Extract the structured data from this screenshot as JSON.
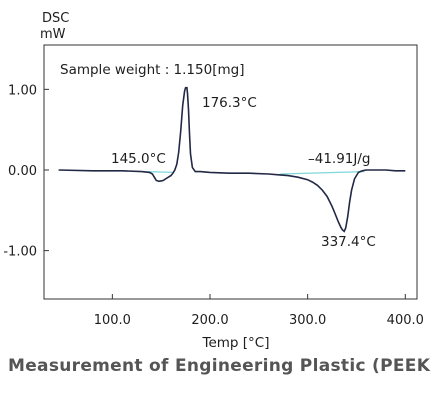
{
  "chart_data": {
    "type": "line",
    "ylabel_top": "DSC",
    "ylabel_unit": "mW",
    "xlabel": "Temp [°C]",
    "xlim": [
      30,
      412
    ],
    "ylim": [
      -1.6,
      1.55
    ],
    "xticks": [
      100,
      200,
      300,
      400
    ],
    "xtick_labels": [
      "100.0",
      "200.0",
      "300.0",
      "400.0"
    ],
    "yticks": [
      1,
      0,
      -1
    ],
    "ytick_labels": [
      "1.00",
      "0.00",
      "-1.00"
    ],
    "grid": false,
    "series": [
      {
        "x": [
          45,
          80,
          110,
          130,
          138,
          141,
          143,
          145,
          148,
          152,
          156,
          160,
          162,
          164,
          166,
          168,
          170,
          172,
          174,
          175,
          176.3,
          177,
          178,
          179,
          180,
          182,
          185,
          190,
          200,
          220,
          240,
          260,
          270,
          280,
          290,
          300,
          305,
          310,
          315,
          320,
          325,
          328,
          331,
          334,
          335.5,
          337.4,
          339,
          341,
          343,
          345,
          348,
          352,
          356,
          360,
          370,
          380,
          390,
          400
        ],
        "y": [
          0.0,
          -0.01,
          -0.01,
          -0.02,
          -0.03,
          -0.05,
          -0.09,
          -0.13,
          -0.14,
          -0.13,
          -0.1,
          -0.07,
          -0.04,
          0.0,
          0.07,
          0.22,
          0.48,
          0.8,
          0.98,
          1.02,
          1.02,
          0.95,
          0.75,
          0.45,
          0.2,
          0.03,
          -0.02,
          -0.02,
          -0.03,
          -0.04,
          -0.04,
          -0.05,
          -0.06,
          -0.07,
          -0.09,
          -0.12,
          -0.15,
          -0.19,
          -0.25,
          -0.33,
          -0.45,
          -0.54,
          -0.63,
          -0.71,
          -0.74,
          -0.76,
          -0.72,
          -0.58,
          -0.4,
          -0.25,
          -0.11,
          -0.03,
          -0.01,
          0.0,
          0.0,
          0.0,
          -0.01,
          -0.01
        ]
      }
    ],
    "baseline1": {
      "x": [
        136,
        162
      ],
      "y": [
        -0.02,
        -0.03
      ]
    },
    "baseline2": {
      "x": [
        272,
        358
      ],
      "y": [
        -0.05,
        -0.02
      ]
    },
    "annotations": {
      "sample_weight": "Sample weight : 1.150[mg]",
      "peak1": "176.3°C",
      "onset1": "145.0°C",
      "enthalpy": "–41.91J/g",
      "peak2": "337.4°C"
    },
    "colors": {
      "curve": "#232845",
      "baseline": "#7fd6dc",
      "frame": "#333333"
    }
  },
  "caption": "Measurement of Engineering Plastic (PEEK"
}
